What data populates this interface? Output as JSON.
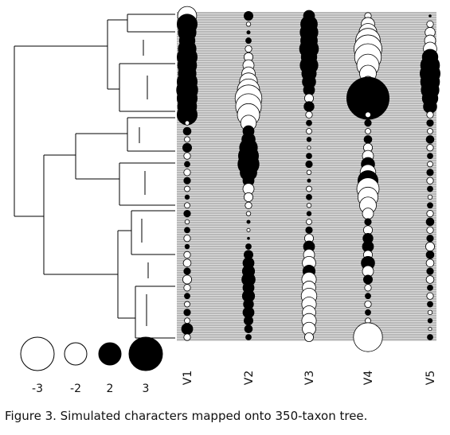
{
  "figure": {
    "columns": [
      {
        "name": "V1",
        "values": [
          -1.7,
          1.8,
          1.6,
          1.4,
          1.6,
          1.8,
          1.7,
          1.6,
          1.8,
          1.9,
          1.8,
          1.7,
          1.8,
          -0.4,
          0.7,
          -0.5,
          0.8,
          -0.6,
          0.5,
          -0.6,
          0.6,
          -0.5,
          0.4,
          -0.5,
          0.6,
          -0.4,
          0.5,
          -0.6,
          0.4,
          -0.6,
          -0.7,
          0.6,
          -0.8,
          -0.6,
          0.5,
          -0.5,
          0.6,
          -0.5,
          1.0,
          -0.6
        ]
      },
      {
        "name": "V2",
        "values": [
          0.8,
          -0.4,
          0.3,
          0.5,
          -0.6,
          -0.8,
          -1.0,
          -1.2,
          -1.6,
          -2.0,
          -2.4,
          -2.3,
          -2.0,
          -1.4,
          1.0,
          1.2,
          1.6,
          1.8,
          1.9,
          1.5,
          1.0,
          -1.0,
          -0.8,
          -0.6,
          -0.4,
          0.3,
          -0.3,
          0.2,
          0.5,
          0.8,
          1.0,
          1.1,
          1.2,
          1.0,
          1.1,
          0.9,
          1.0,
          0.8,
          0.7,
          0.5
        ]
      },
      {
        "name": "V3",
        "values": [
          1.0,
          1.5,
          1.6,
          1.5,
          1.7,
          1.4,
          1.6,
          1.3,
          1.2,
          1.0,
          -0.8,
          0.9,
          -0.6,
          0.5,
          -0.5,
          0.4,
          -0.3,
          0.5,
          0.6,
          -0.4,
          0.3,
          -0.5,
          0.5,
          -0.4,
          0.4,
          -0.5,
          0.6,
          -0.8,
          1.0,
          -1.0,
          -1.2,
          1.1,
          -1.3,
          -1.2,
          -1.4,
          -1.3,
          -1.2,
          -1.3,
          -1.2,
          -0.8
        ]
      },
      {
        "name": "V4",
        "values": [
          -0.6,
          -1.2,
          -1.6,
          -2.2,
          -2.5,
          -2.4,
          -2.0,
          -1.5,
          -1.0,
          -1.4,
          3.8,
          1.8,
          -0.5,
          0.6,
          -0.5,
          0.7,
          -0.8,
          -1.0,
          1.2,
          -1.4,
          1.8,
          -2.0,
          -1.8,
          -1.5,
          -1.0,
          0.6,
          -0.8,
          0.9,
          1.0,
          -0.8,
          1.2,
          -1.0,
          0.8,
          -0.6,
          0.5,
          -0.6,
          0.5,
          -0.5,
          -0.6,
          -2.6
        ]
      },
      {
        "name": "V5",
        "values": [
          0.2,
          -0.6,
          -0.9,
          -1.0,
          -1.2,
          1.4,
          1.7,
          1.8,
          1.7,
          1.6,
          1.4,
          1.2,
          -0.6,
          0.6,
          -0.5,
          0.7,
          -0.6,
          0.5,
          -0.5,
          0.6,
          -0.6,
          0.5,
          -0.4,
          0.5,
          -0.6,
          0.7,
          -0.6,
          0.6,
          -0.8,
          0.7,
          -0.7,
          0.6,
          -0.7,
          0.5,
          -0.6,
          0.5,
          -0.4,
          0.4,
          -0.3,
          0.5
        ]
      }
    ],
    "legend": [
      -3,
      -2,
      2,
      3
    ],
    "caption": "Figure 3. Simulated characters mapped onto 350-taxon tree."
  }
}
